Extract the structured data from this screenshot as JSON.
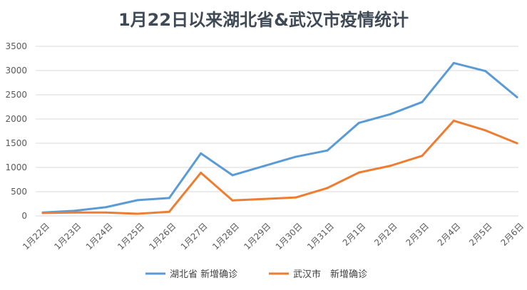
{
  "chart_data": {
    "type": "line",
    "title": "1月22日以来湖北省&武汉市疫情统计",
    "xlabel": "",
    "ylabel": "",
    "categories": [
      "1月22日",
      "1月23日",
      "1月24日",
      "1月25日",
      "1月26日",
      "1月27日",
      "1月28日",
      "1月29日",
      "1月30日",
      "1月31日",
      "2月1日",
      "2月2日",
      "2月3日",
      "2月4日",
      "2月5日",
      "2月6日"
    ],
    "ylim": [
      0,
      3500
    ],
    "yticks": [
      0,
      500,
      1000,
      1500,
      2000,
      2500,
      3000,
      3500
    ],
    "grid": true,
    "legend": "bottom",
    "series": [
      {
        "name": "湖北省 新增确诊",
        "color": "#5b9bd5",
        "values": [
          70,
          105,
          180,
          325,
          370,
          1290,
          840,
          1030,
          1220,
          1350,
          1920,
          2100,
          2350,
          3155,
          2990,
          2450
        ]
      },
      {
        "name": "武汉市　新增确诊",
        "color": "#ed7d31",
        "values": [
          60,
          70,
          70,
          45,
          85,
          890,
          320,
          350,
          380,
          575,
          895,
          1035,
          1240,
          1965,
          1765,
          1500
        ]
      }
    ]
  }
}
